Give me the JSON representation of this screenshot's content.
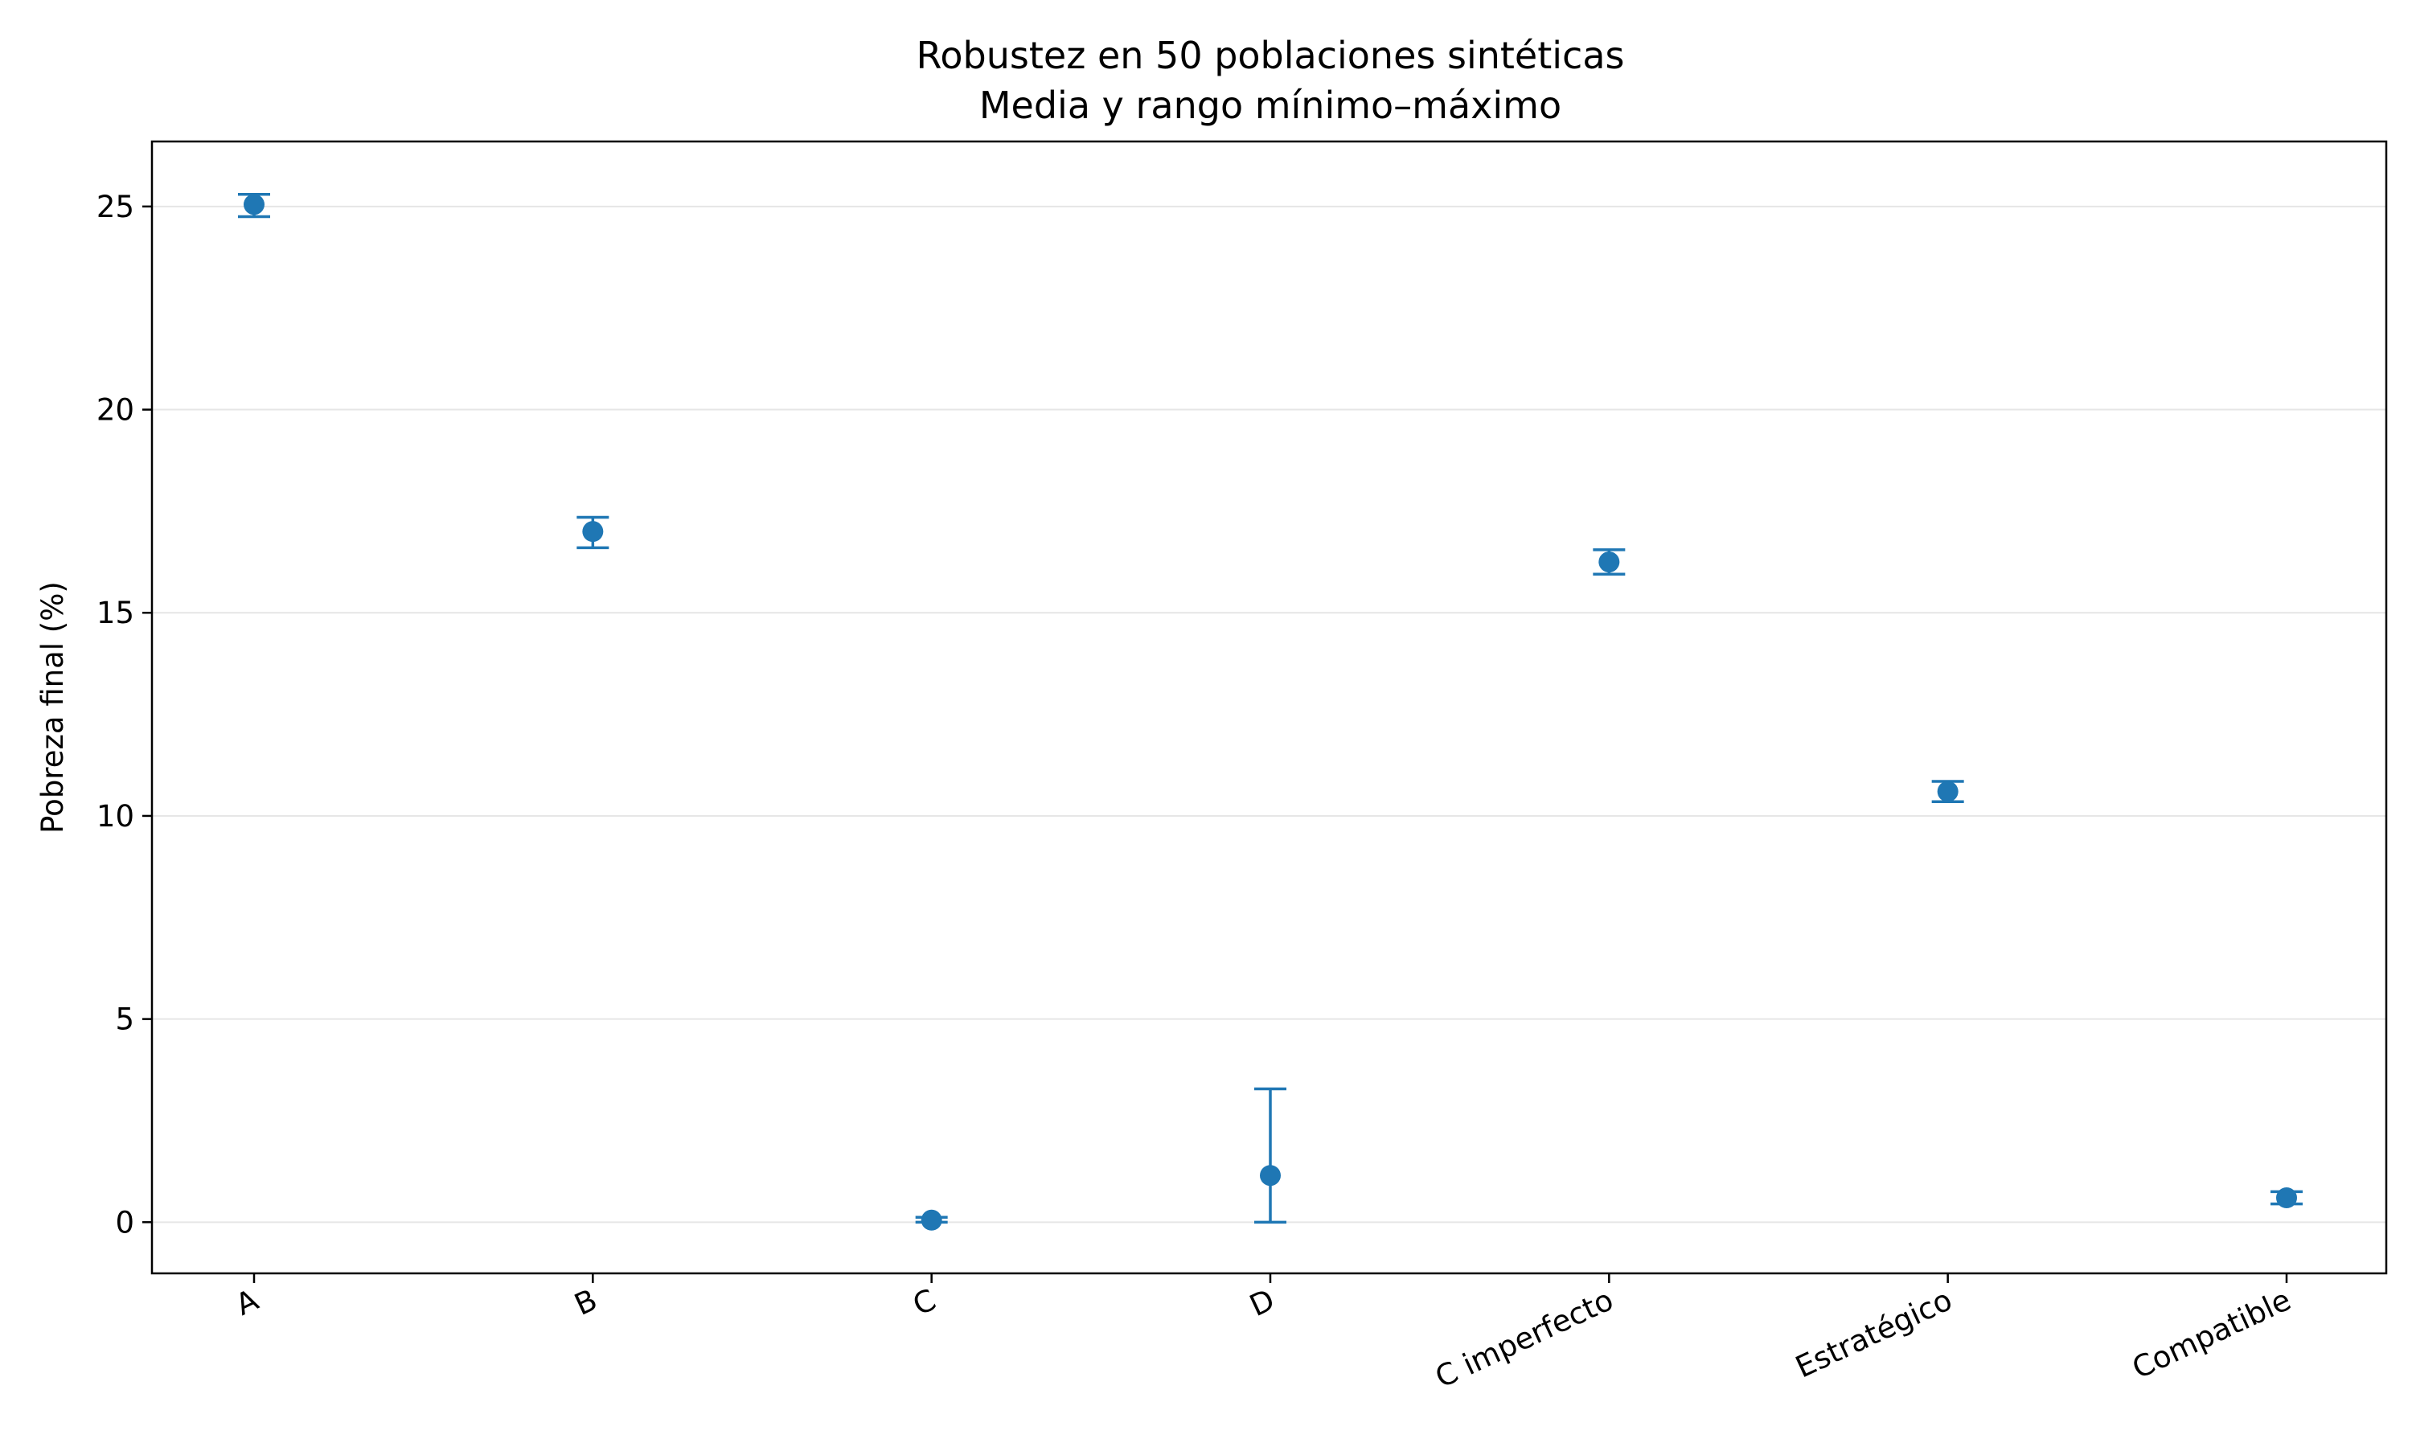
{
  "chart_data": {
    "type": "scatter",
    "title": "Robustez en 50 poblaciones sintéticas",
    "subtitle": "Media y rango mínimo–máximo",
    "xlabel": "",
    "ylabel": "Pobreza final (%)",
    "categories": [
      "A",
      "B",
      "C",
      "D",
      "C imperfecto",
      "Estratégico",
      "Compatible"
    ],
    "series": [
      {
        "mean": [
          25.05,
          17.0,
          0.05,
          1.15,
          16.25,
          10.6,
          0.6
        ],
        "min": [
          24.75,
          16.6,
          0.0,
          0.0,
          15.95,
          10.35,
          0.45
        ],
        "max": [
          25.3,
          17.35,
          0.12,
          3.28,
          16.55,
          10.85,
          0.75
        ]
      }
    ],
    "yticks": [
      0,
      5,
      10,
      15,
      20,
      25
    ],
    "ylim": [
      -1.26,
      26.6
    ],
    "grid": "horizontal",
    "color": "#1f77b4"
  }
}
